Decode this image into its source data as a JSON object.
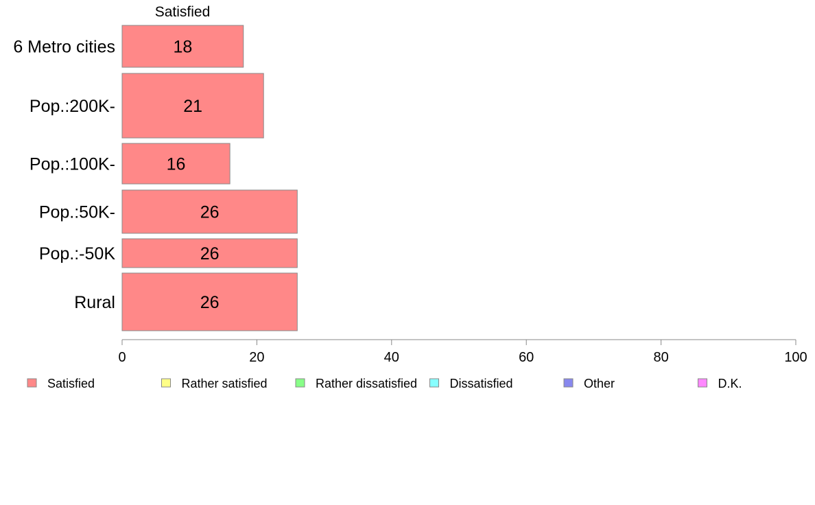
{
  "chart_data": {
    "type": "bar",
    "orientation": "horizontal",
    "stacked": true,
    "series_header": "Satisfied",
    "categories": [
      "6 Metro cities",
      "Pop.:200K-",
      "Pop.:100K-",
      "Pop.:50K-",
      "Pop.:-50K",
      "Rural"
    ],
    "series": [
      {
        "name": "Satisfied",
        "color": "#ff8888",
        "values": [
          18,
          21,
          16,
          26,
          26,
          26
        ]
      }
    ],
    "xlim": [
      0,
      100
    ],
    "xticks": [
      "0",
      "20",
      "40",
      "60",
      "80",
      "100"
    ],
    "grid": false,
    "legend_position": "bottom",
    "legend": [
      {
        "label": "Satisfied",
        "color": "#ff8888"
      },
      {
        "label": "Rather satisfied",
        "color": "#ffff88"
      },
      {
        "label": "Rather dissatisfied",
        "color": "#88ff88"
      },
      {
        "label": "Dissatisfied",
        "color": "#88ffff"
      },
      {
        "label": "Other",
        "color": "#8888ee"
      },
      {
        "label": "D.K.",
        "color": "#ff88ff"
      }
    ]
  }
}
